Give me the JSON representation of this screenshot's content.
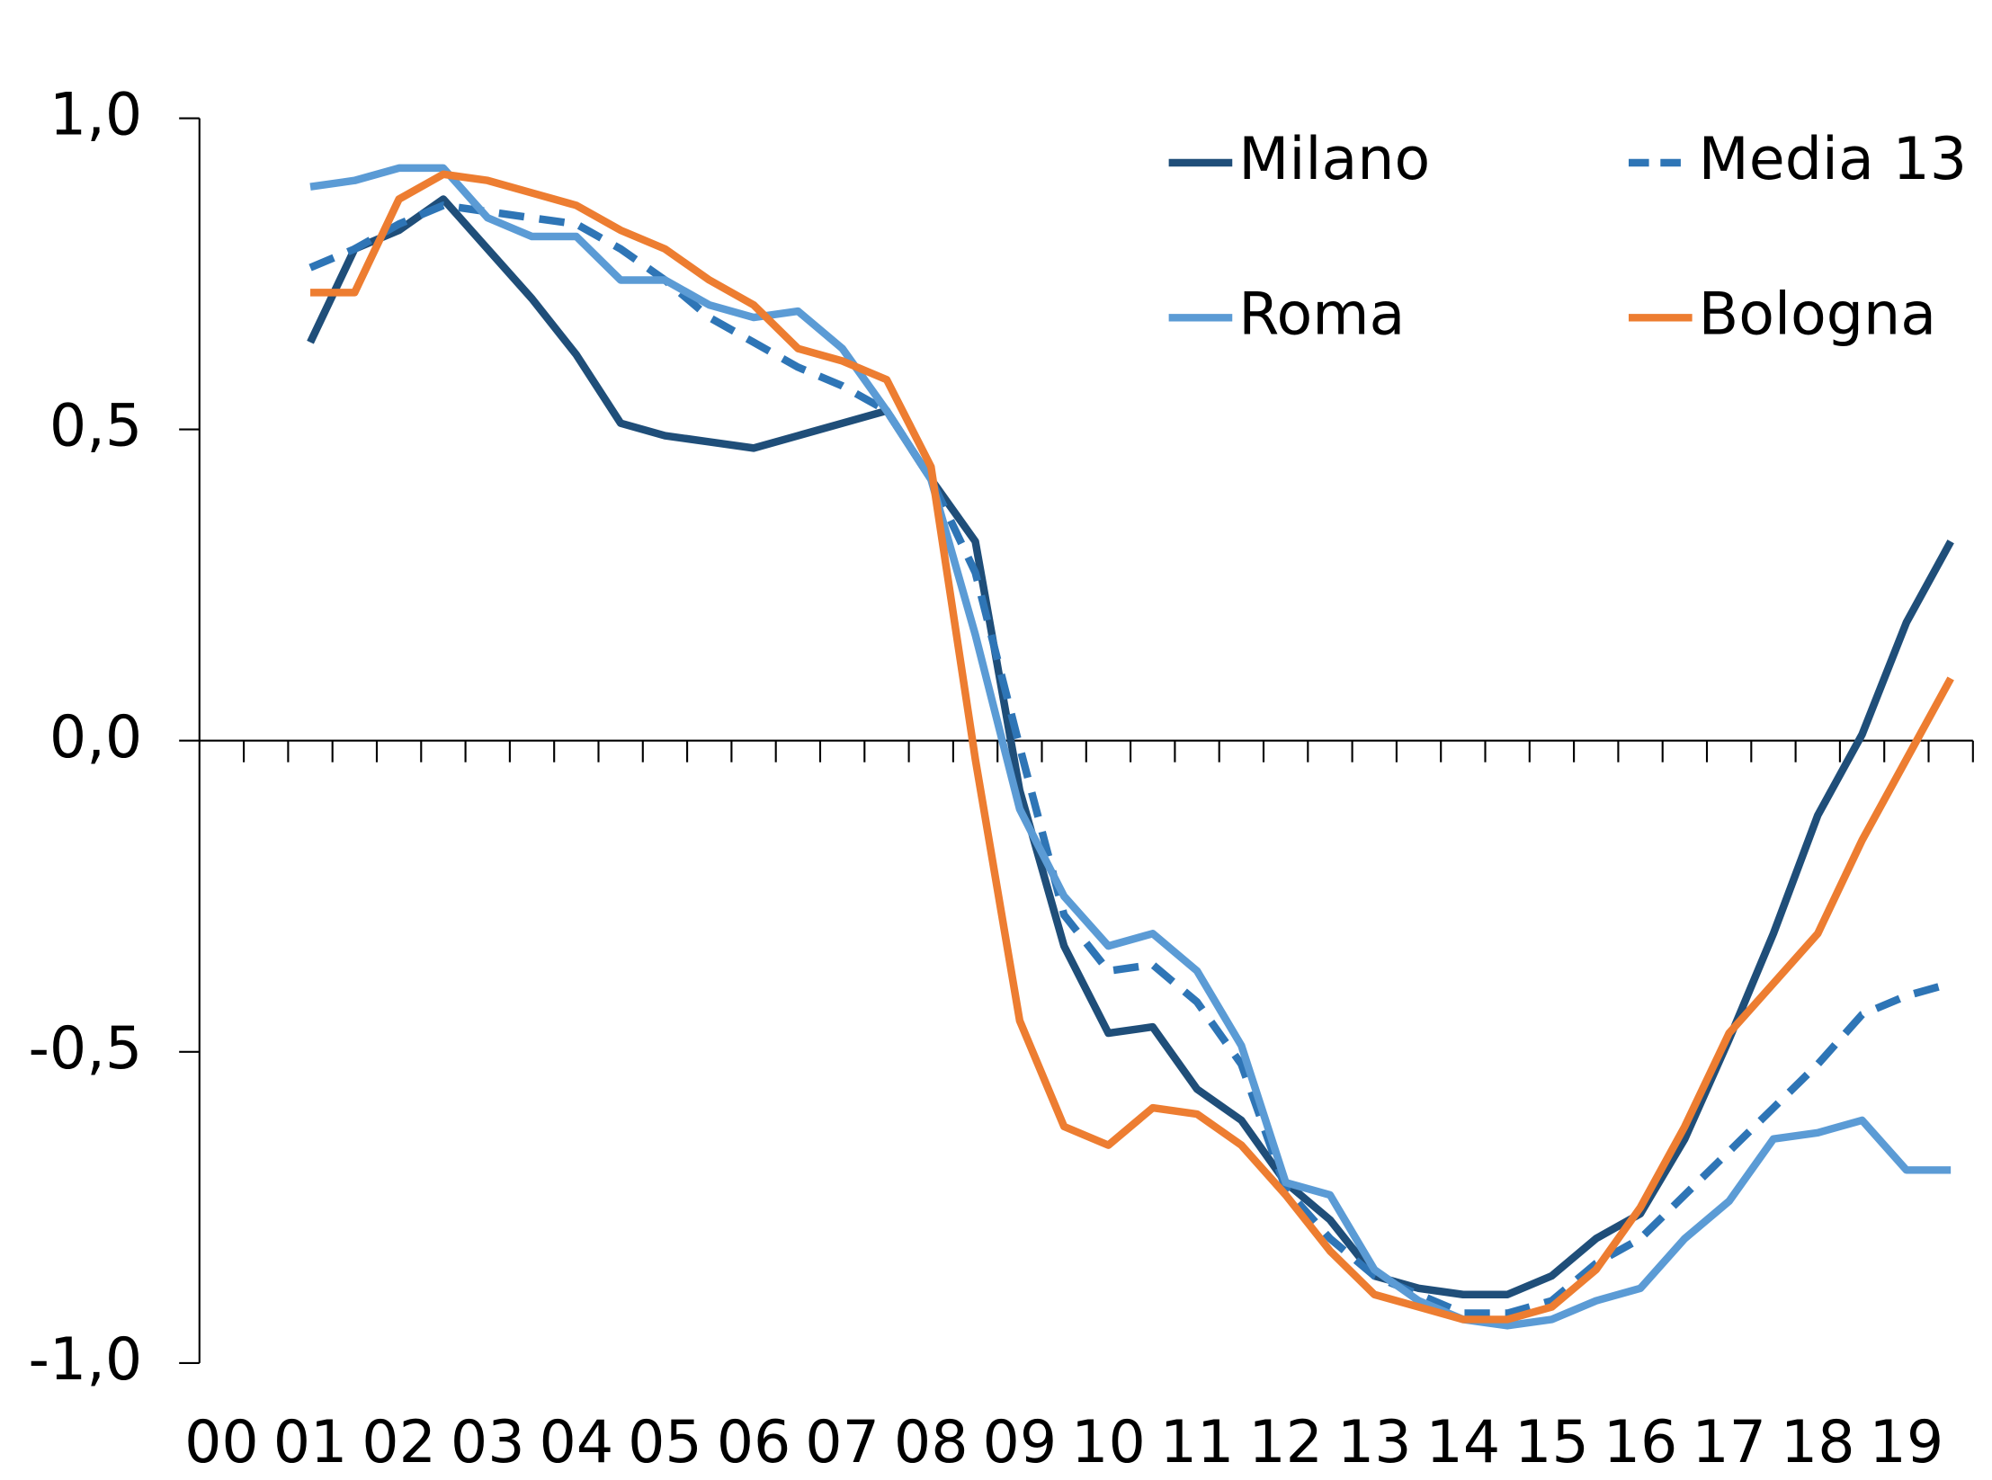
{
  "chart_data": {
    "type": "line",
    "categories": [
      "00",
      null,
      "01",
      null,
      "02",
      null,
      "03",
      null,
      "04",
      null,
      "05",
      null,
      "06",
      null,
      "07",
      null,
      "08",
      null,
      "09",
      null,
      "10",
      null,
      "11",
      null,
      "12",
      null,
      "13",
      null,
      "14",
      null,
      "15",
      null,
      "16",
      null,
      "17",
      null,
      "18",
      null,
      "19",
      null
    ],
    "ylim": [
      -1,
      1
    ],
    "yticks": [
      {
        "value": -1,
        "label": "-1,0"
      },
      {
        "value": -0.5,
        "label": "-0,5"
      },
      {
        "value": 0,
        "label": "0,0"
      },
      {
        "value": 0.5,
        "label": "0,5"
      },
      {
        "value": 1,
        "label": "1,0"
      }
    ],
    "legend": "top-right",
    "series": [
      {
        "name": "Milano",
        "color": "#1f4e79",
        "style": "solid",
        "values": [
          null,
          null,
          0.64,
          0.79,
          0.82,
          0.87,
          0.79,
          0.71,
          0.62,
          0.51,
          0.49,
          0.48,
          0.47,
          0.49,
          0.51,
          0.53,
          0.42,
          0.32,
          -0.08,
          -0.33,
          -0.47,
          -0.46,
          -0.56,
          -0.61,
          -0.71,
          -0.77,
          -0.86,
          -0.88,
          -0.89,
          -0.89,
          -0.86,
          -0.8,
          -0.76,
          -0.64,
          -0.48,
          -0.31,
          -0.12,
          0.01,
          0.19,
          0.32
        ]
      },
      {
        "name": "Media 13",
        "color": "#2e75b6",
        "style": "dashed",
        "values": [
          null,
          null,
          0.76,
          0.79,
          0.83,
          0.86,
          0.85,
          0.84,
          0.83,
          0.79,
          0.74,
          0.68,
          0.64,
          0.6,
          0.57,
          0.53,
          0.42,
          0.27,
          -0.01,
          -0.28,
          -0.37,
          -0.36,
          -0.42,
          -0.52,
          -0.72,
          -0.8,
          -0.86,
          -0.89,
          -0.92,
          -0.92,
          -0.9,
          -0.84,
          -0.8,
          -0.73,
          -0.66,
          -0.59,
          -0.52,
          -0.44,
          -0.41,
          -0.39
        ]
      },
      {
        "name": "Roma",
        "color": "#5b9bd5",
        "style": "solid",
        "values": [
          null,
          null,
          0.89,
          0.9,
          0.92,
          0.92,
          0.84,
          0.81,
          0.81,
          0.74,
          0.74,
          0.7,
          0.68,
          0.69,
          0.63,
          0.53,
          0.42,
          0.17,
          -0.11,
          -0.25,
          -0.33,
          -0.31,
          -0.37,
          -0.49,
          -0.71,
          -0.73,
          -0.85,
          -0.9,
          -0.93,
          -0.94,
          -0.93,
          -0.9,
          -0.88,
          -0.8,
          -0.74,
          -0.64,
          -0.63,
          -0.61,
          -0.69,
          -0.69
        ]
      },
      {
        "name": "Bologna",
        "color": "#ed7d31",
        "style": "solid",
        "values": [
          null,
          null,
          0.72,
          0.72,
          0.87,
          0.91,
          0.9,
          0.88,
          0.86,
          0.82,
          0.79,
          0.74,
          0.7,
          0.63,
          0.61,
          0.58,
          0.44,
          -0.03,
          -0.45,
          -0.62,
          -0.65,
          -0.59,
          -0.6,
          -0.65,
          -0.73,
          -0.82,
          -0.89,
          -0.91,
          -0.93,
          -0.93,
          -0.91,
          -0.85,
          -0.75,
          -0.62,
          -0.47,
          -0.39,
          -0.31,
          -0.16,
          -0.03,
          0.1
        ]
      }
    ]
  }
}
